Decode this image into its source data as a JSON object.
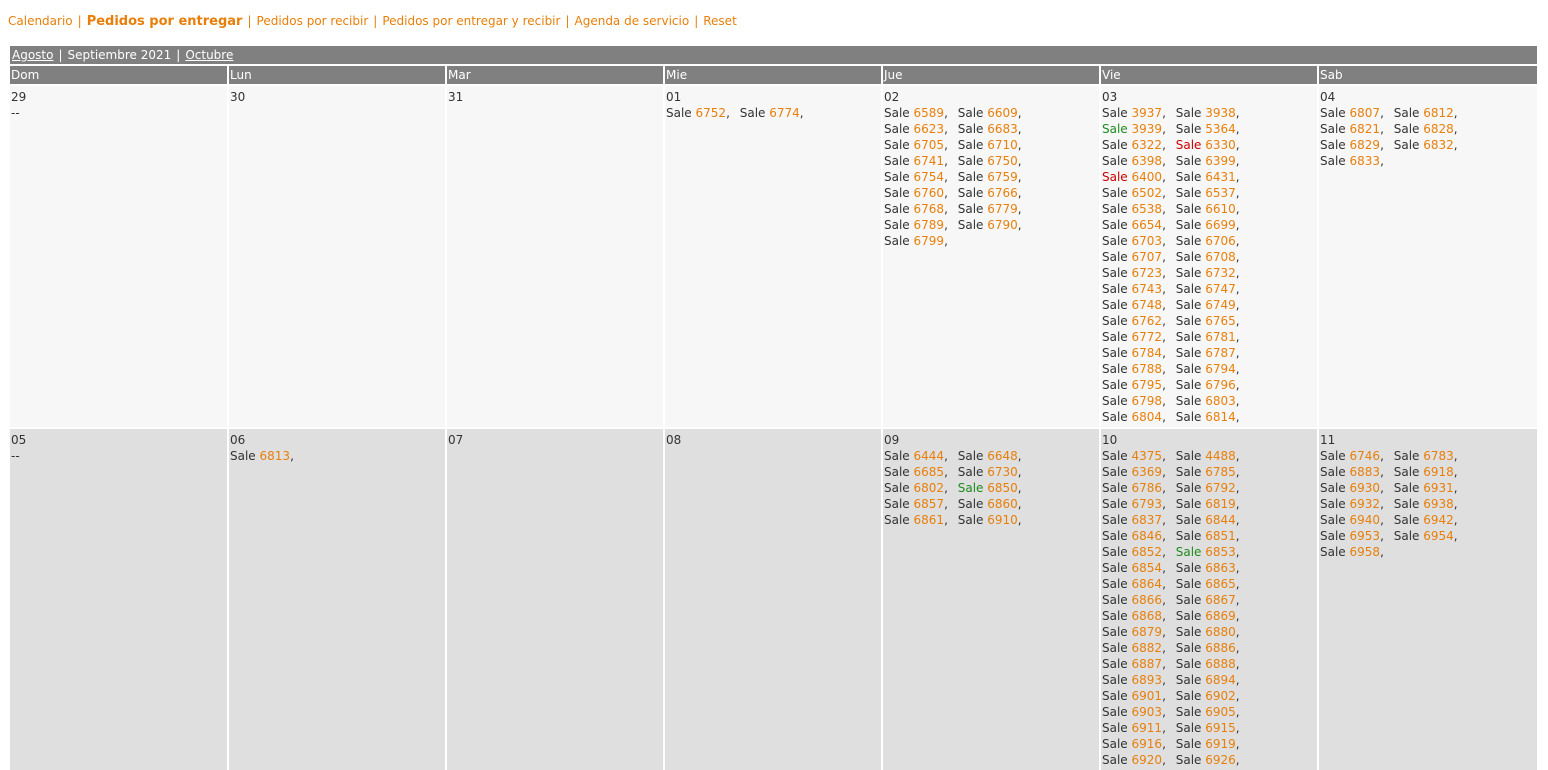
{
  "nav": [
    {
      "label": "Calendario",
      "active": false
    },
    {
      "label": "Pedidos por entregar",
      "active": true
    },
    {
      "label": "Pedidos por recibir",
      "active": false
    },
    {
      "label": "Pedidos por entregar y recibir",
      "active": false
    },
    {
      "label": "Agenda de servicio",
      "active": false
    },
    {
      "label": "Reset",
      "active": false
    }
  ],
  "month_bar": {
    "prev": "Agosto",
    "current": "Septiembre 2021",
    "next": "Octubre"
  },
  "weekdays": [
    "Dom",
    "Lun",
    "Mar",
    "Mie",
    "Jue",
    "Vie",
    "Sab"
  ],
  "entry_label": "Sale",
  "colors": {
    "link": "#e87f0a",
    "green": "#1e8b1e",
    "red": "#cc0000",
    "header": "#808080"
  },
  "weeks": [
    [
      {
        "day": "29",
        "empty": "--",
        "sales": []
      },
      {
        "day": "30",
        "sales": []
      },
      {
        "day": "31",
        "sales": []
      },
      {
        "day": "01",
        "sales": [
          {
            "n": "6752"
          },
          {
            "n": "6774"
          }
        ]
      },
      {
        "day": "02",
        "sales": [
          {
            "n": "6589"
          },
          {
            "n": "6609"
          },
          {
            "n": "6623"
          },
          {
            "n": "6683"
          },
          {
            "n": "6705"
          },
          {
            "n": "6710"
          },
          {
            "n": "6741"
          },
          {
            "n": "6750"
          },
          {
            "n": "6754"
          },
          {
            "n": "6759"
          },
          {
            "n": "6760"
          },
          {
            "n": "6766"
          },
          {
            "n": "6768"
          },
          {
            "n": "6779"
          },
          {
            "n": "6789"
          },
          {
            "n": "6790"
          },
          {
            "n": "6799"
          }
        ]
      },
      {
        "day": "03",
        "sales": [
          {
            "n": "3937"
          },
          {
            "n": "3938"
          },
          {
            "n": "3939",
            "c": "green"
          },
          {
            "n": "5364"
          },
          {
            "n": "6322"
          },
          {
            "n": "6330",
            "c": "red"
          },
          {
            "n": "6398"
          },
          {
            "n": "6399"
          },
          {
            "n": "6400",
            "c": "red"
          },
          {
            "n": "6431"
          },
          {
            "n": "6502"
          },
          {
            "n": "6537"
          },
          {
            "n": "6538"
          },
          {
            "n": "6610"
          },
          {
            "n": "6654"
          },
          {
            "n": "6699"
          },
          {
            "n": "6703"
          },
          {
            "n": "6706"
          },
          {
            "n": "6707"
          },
          {
            "n": "6708"
          },
          {
            "n": "6723"
          },
          {
            "n": "6732"
          },
          {
            "n": "6743"
          },
          {
            "n": "6747"
          },
          {
            "n": "6748"
          },
          {
            "n": "6749"
          },
          {
            "n": "6762"
          },
          {
            "n": "6765"
          },
          {
            "n": "6772"
          },
          {
            "n": "6781"
          },
          {
            "n": "6784"
          },
          {
            "n": "6787"
          },
          {
            "n": "6788"
          },
          {
            "n": "6794"
          },
          {
            "n": "6795"
          },
          {
            "n": "6796"
          },
          {
            "n": "6798"
          },
          {
            "n": "6803"
          },
          {
            "n": "6804"
          },
          {
            "n": "6814"
          }
        ]
      },
      {
        "day": "04",
        "sales": [
          {
            "n": "6807"
          },
          {
            "n": "6812"
          },
          {
            "n": "6821"
          },
          {
            "n": "6828"
          },
          {
            "n": "6829"
          },
          {
            "n": "6832"
          },
          {
            "n": "6833"
          }
        ]
      }
    ],
    [
      {
        "day": "05",
        "empty": "--",
        "sales": []
      },
      {
        "day": "06",
        "sales": [
          {
            "n": "6813"
          }
        ]
      },
      {
        "day": "07",
        "sales": []
      },
      {
        "day": "08",
        "sales": []
      },
      {
        "day": "09",
        "sales": [
          {
            "n": "6444"
          },
          {
            "n": "6648"
          },
          {
            "n": "6685"
          },
          {
            "n": "6730"
          },
          {
            "n": "6802"
          },
          {
            "n": "6850",
            "c": "green"
          },
          {
            "n": "6857"
          },
          {
            "n": "6860"
          },
          {
            "n": "6861"
          },
          {
            "n": "6910"
          }
        ]
      },
      {
        "day": "10",
        "sales": [
          {
            "n": "4375"
          },
          {
            "n": "4488"
          },
          {
            "n": "6369"
          },
          {
            "n": "6785"
          },
          {
            "n": "6786"
          },
          {
            "n": "6792"
          },
          {
            "n": "6793"
          },
          {
            "n": "6819"
          },
          {
            "n": "6837"
          },
          {
            "n": "6844"
          },
          {
            "n": "6846"
          },
          {
            "n": "6851"
          },
          {
            "n": "6852"
          },
          {
            "n": "6853",
            "c": "green"
          },
          {
            "n": "6854"
          },
          {
            "n": "6863"
          },
          {
            "n": "6864"
          },
          {
            "n": "6865"
          },
          {
            "n": "6866"
          },
          {
            "n": "6867"
          },
          {
            "n": "6868"
          },
          {
            "n": "6869"
          },
          {
            "n": "6879"
          },
          {
            "n": "6880"
          },
          {
            "n": "6882"
          },
          {
            "n": "6886"
          },
          {
            "n": "6887"
          },
          {
            "n": "6888"
          },
          {
            "n": "6893"
          },
          {
            "n": "6894"
          },
          {
            "n": "6901"
          },
          {
            "n": "6902"
          },
          {
            "n": "6903"
          },
          {
            "n": "6905"
          },
          {
            "n": "6911"
          },
          {
            "n": "6915"
          },
          {
            "n": "6916"
          },
          {
            "n": "6919"
          },
          {
            "n": "6920"
          },
          {
            "n": "6926"
          }
        ]
      },
      {
        "day": "11",
        "sales": [
          {
            "n": "6746"
          },
          {
            "n": "6783"
          },
          {
            "n": "6883"
          },
          {
            "n": "6918"
          },
          {
            "n": "6930"
          },
          {
            "n": "6931"
          },
          {
            "n": "6932"
          },
          {
            "n": "6938"
          },
          {
            "n": "6940"
          },
          {
            "n": "6942"
          },
          {
            "n": "6953"
          },
          {
            "n": "6954"
          },
          {
            "n": "6958"
          }
        ]
      }
    ]
  ]
}
